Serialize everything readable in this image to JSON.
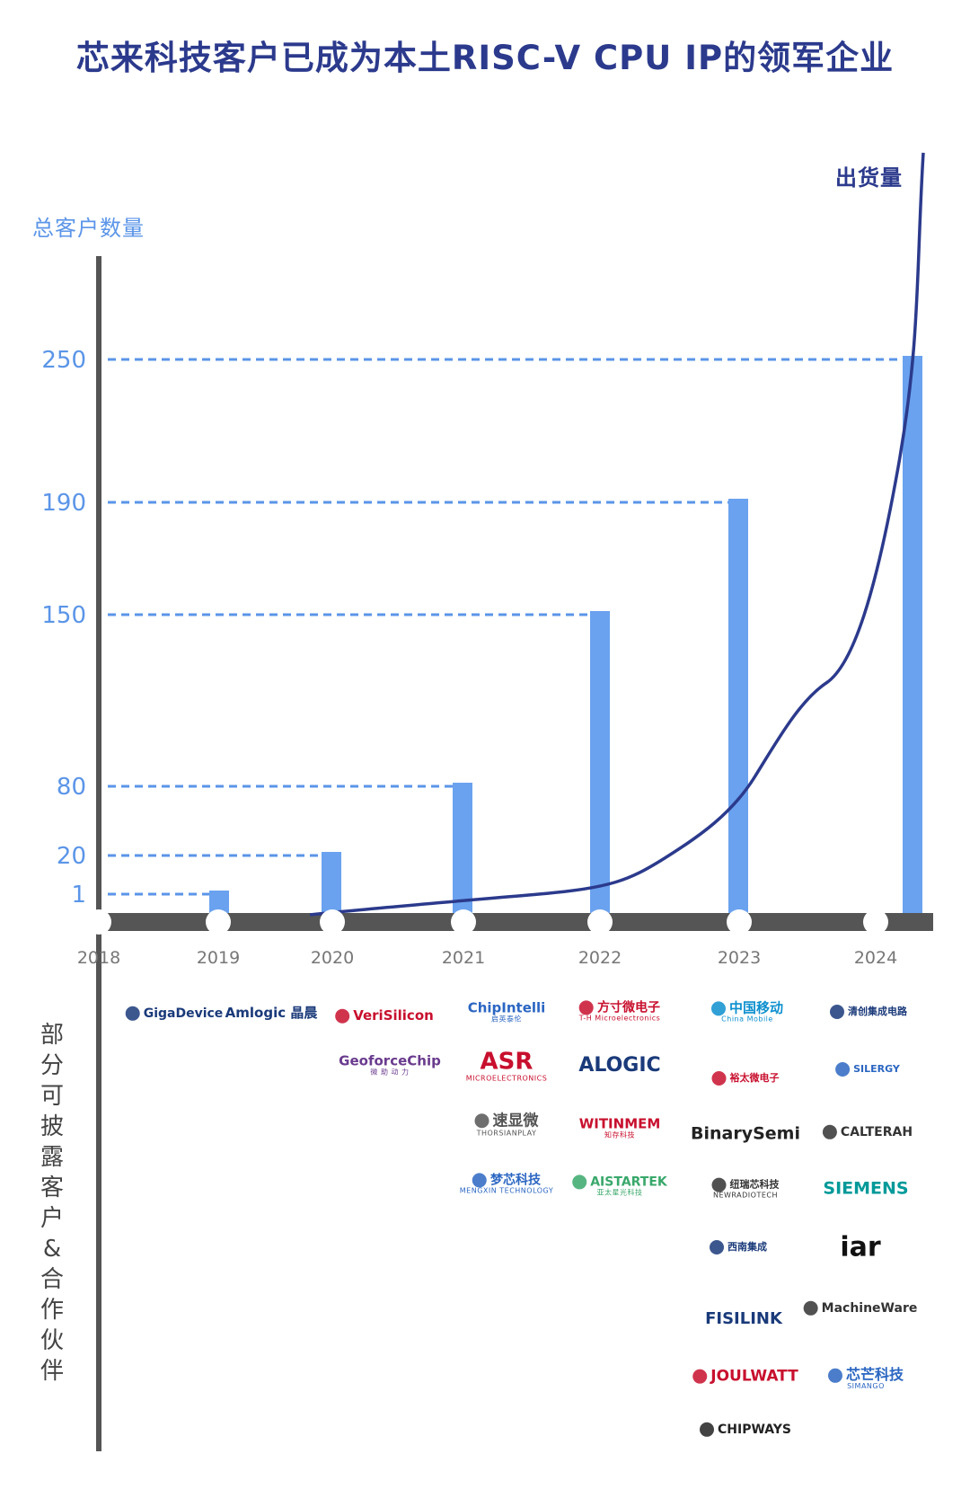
{
  "title": "芯来科技客户已成为本土RISC-V CPU IP的领军企业",
  "y_axis_label": "总客户数量",
  "shipment_label": "出货量",
  "side_label": [
    "部",
    "分",
    "可",
    "披",
    "露",
    "客",
    "户",
    "&",
    "合",
    "作",
    "伙",
    "伴"
  ],
  "colors": {
    "bar": "#6aa2ef",
    "line": "#2b3a8c",
    "axis": "#555555",
    "accent": "#5b95e8"
  },
  "chart_data": {
    "type": "bar",
    "x_years": [
      "2018",
      "2019",
      "2020",
      "2021",
      "2022",
      "2023",
      "2024"
    ],
    "y_ticks": [
      1,
      20,
      80,
      150,
      190,
      250
    ],
    "categories": [
      "2019",
      "2020",
      "2021",
      "2022",
      "2023",
      "2024"
    ],
    "values": [
      1,
      20,
      80,
      150,
      190,
      250
    ],
    "ylabel": "总客户数量",
    "secondary_series": {
      "name": "出货量",
      "type": "line",
      "trend": "exponential"
    },
    "grid": "dashed guide lines from y-axis to each bar top"
  },
  "logos": [
    {
      "id": "gigadevice",
      "text": "GigaDevice",
      "color": "#1a3a7a",
      "icon": "gigadevice-swirl-icon"
    },
    {
      "id": "amlogic",
      "text": "Amlogic 晶晨",
      "color": "#1a3a7a"
    },
    {
      "id": "verisilicon",
      "text": "VeriSilicon",
      "color": "#c8102e",
      "icon": "verisilicon-oval-icon"
    },
    {
      "id": "geoforcechip",
      "text": "GeoforceChip",
      "sub": "微 助 动 力",
      "color": "#6a3b8e"
    },
    {
      "id": "chipintelli",
      "text": "ChipIntelli",
      "sub": "启英泰伦",
      "color": "#2b66c2"
    },
    {
      "id": "asr",
      "text": "ASR",
      "sub": "MICROELECTRONICS",
      "color": "#c8102e"
    },
    {
      "id": "thorsianplay",
      "text": "速显微",
      "sub": "THORSIANPLAY",
      "color": "#555",
      "icon": "thorsian-pattern-icon"
    },
    {
      "id": "mengxin",
      "text": "梦芯科技",
      "sub": "MENGXIN TECHNOLOGY",
      "color": "#2b66c2",
      "icon": "mengxin-mountain-icon"
    },
    {
      "id": "fangcun",
      "text": "方寸微电子",
      "sub": "T-H Microelectronics",
      "color": "#c8102e",
      "icon": "fangcun-square-icon"
    },
    {
      "id": "alogic",
      "text": "ALOGIC",
      "color": "#1a3a7a"
    },
    {
      "id": "witinmem",
      "text": "WITINMEM",
      "sub": "知存科技",
      "color": "#c8102e"
    },
    {
      "id": "aistartek",
      "text": "AISTARTEK",
      "sub": "亚太星光科技",
      "color": "#39a86b",
      "icon": "aistartek-a-icon"
    },
    {
      "id": "chinamobile",
      "text": "中国移动",
      "sub": "China Mobile",
      "color": "#0c8fce",
      "icon": "china-mobile-swirl-icon"
    },
    {
      "id": "yutai",
      "text": "裕太微电子",
      "color": "#c8102e",
      "icon": "yutai-waves-icon"
    },
    {
      "id": "binarysemi",
      "text": "BinarySemi",
      "color": "#222"
    },
    {
      "id": "newradiotech",
      "text": "纽瑞芯科技",
      "sub": "NEWRADIOTECH",
      "color": "#333",
      "icon": "newradio-bars-icon"
    },
    {
      "id": "xinanjicheng",
      "text": "西南集成",
      "color": "#1a3a7a",
      "icon": "xinan-circle-icon"
    },
    {
      "id": "fisilink",
      "text": "FISILINK",
      "color": "#1a3a7a"
    },
    {
      "id": "joulwatt",
      "text": "JOULWATT",
      "color": "#c8102e",
      "icon": "jw-circle-icon"
    },
    {
      "id": "chipways",
      "text": "CHIPWAYS",
      "color": "#222",
      "icon": "chipways-globe-icon"
    },
    {
      "id": "qingchuang",
      "text": "清创集成电路",
      "color": "#1a3a7a",
      "icon": "qingchuang-star-icon"
    },
    {
      "id": "silergy",
      "text": "SILERGY",
      "color": "#2b66c2",
      "icon": "silergy-s-icon"
    },
    {
      "id": "calterah",
      "text": "CALTERAH",
      "color": "#333",
      "icon": "calterah-star-icon"
    },
    {
      "id": "siemens",
      "text": "SIEMENS",
      "color": "#009999"
    },
    {
      "id": "iar",
      "text": "iar",
      "color": "#111"
    },
    {
      "id": "machineware",
      "text": "MachineWare",
      "color": "#333",
      "icon": "machineware-box-icon"
    },
    {
      "id": "simango",
      "text": "芯芒科技",
      "sub": "SIMANGO",
      "color": "#2b66c2",
      "icon": "simango-xm-icon"
    }
  ]
}
